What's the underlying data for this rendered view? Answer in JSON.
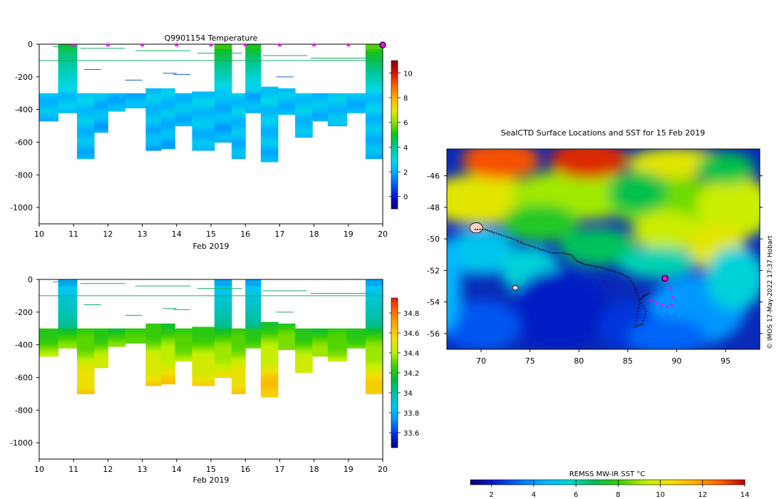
{
  "colors": {
    "temp_scale": [
      "#08007f",
      "#0010e0",
      "#0060ff",
      "#00b0ff",
      "#00d8e8",
      "#00c89a",
      "#10c020",
      "#90e000",
      "#e8e800",
      "#ffb000",
      "#ff6000",
      "#d81000",
      "#880000"
    ],
    "sal_scale": [
      "#08007f",
      "#0030e0",
      "#0090ff",
      "#00c8f0",
      "#00c0a0",
      "#00b840",
      "#40d000",
      "#c0f000",
      "#f0e000",
      "#ffb000",
      "#ff7000",
      "#e02000"
    ],
    "sst_scale": [
      "#08007f",
      "#0020d0",
      "#0070ff",
      "#00b8ff",
      "#00d8d0",
      "#00c050",
      "#40d000",
      "#c0f000",
      "#f8e000",
      "#ffb000",
      "#ff6000",
      "#c00000"
    ],
    "profile_marker": "#ff00ff",
    "track": "#000000"
  },
  "chart_data": [
    {
      "id": "temperature",
      "type": "heatmap",
      "title": "Q9901154  Temperature",
      "xlabel": "Feb 2019",
      "ylabel": "",
      "xlim": [
        10,
        20
      ],
      "ylim": [
        -1100,
        0
      ],
      "x_ticks": [
        10,
        11,
        12,
        13,
        14,
        15,
        16,
        17,
        18,
        19,
        20
      ],
      "y_ticks": [
        0,
        -200,
        -400,
        -600,
        -800,
        -1000
      ],
      "colorbar": {
        "range": [
          -1,
          11
        ],
        "ticks": [
          0,
          2,
          4,
          6,
          8,
          10
        ]
      },
      "surface_markers": [
        11,
        12,
        13,
        14,
        15,
        16,
        17,
        18,
        19
      ],
      "last_marker": 20,
      "profiles": [
        {
          "x0": 10.0,
          "x1": 10.55,
          "depth": 470,
          "surface": null,
          "thermo": 300,
          "deep": 2.4
        },
        {
          "x0": 10.55,
          "x1": 11.1,
          "depth": 420,
          "surface": 4.5,
          "thermo": 300,
          "deep": 2.5
        },
        {
          "x0": 11.1,
          "x1": 11.6,
          "depth": 700,
          "surface": null,
          "thermo": 300,
          "deep": 2.6
        },
        {
          "x0": 11.6,
          "x1": 12.0,
          "depth": 540,
          "surface": null,
          "thermo": 300,
          "deep": 2.3
        },
        {
          "x0": 12.0,
          "x1": 12.5,
          "depth": 410,
          "surface": null,
          "thermo": 300,
          "deep": 2.2
        },
        {
          "x0": 12.5,
          "x1": 13.1,
          "depth": 390,
          "surface": null,
          "thermo": 300,
          "deep": 2.2
        },
        {
          "x0": 13.1,
          "x1": 13.55,
          "depth": 650,
          "surface": null,
          "thermo": 270,
          "deep": 2.5
        },
        {
          "x0": 13.55,
          "x1": 13.95,
          "depth": 640,
          "surface": null,
          "thermo": 270,
          "deep": 2.5
        },
        {
          "x0": 13.95,
          "x1": 14.45,
          "depth": 500,
          "surface": null,
          "thermo": 300,
          "deep": 2.4
        },
        {
          "x0": 14.45,
          "x1": 15.1,
          "depth": 650,
          "surface": null,
          "thermo": 290,
          "deep": 2.6
        },
        {
          "x0": 15.1,
          "x1": 15.6,
          "depth": 600,
          "surface": 5.0,
          "thermo": 300,
          "deep": 2.3
        },
        {
          "x0": 15.6,
          "x1": 16.0,
          "depth": 700,
          "surface": null,
          "thermo": 300,
          "deep": 2.6
        },
        {
          "x0": 16.0,
          "x1": 16.45,
          "depth": 420,
          "surface": 4.8,
          "thermo": 300,
          "deep": 2.2
        },
        {
          "x0": 16.45,
          "x1": 16.95,
          "depth": 715,
          "surface": null,
          "thermo": 255,
          "deep": 2.7
        },
        {
          "x0": 16.95,
          "x1": 17.45,
          "depth": 430,
          "surface": null,
          "thermo": 265,
          "deep": 2.4
        },
        {
          "x0": 17.45,
          "x1": 17.95,
          "depth": 570,
          "surface": null,
          "thermo": 300,
          "deep": 2.6
        },
        {
          "x0": 17.95,
          "x1": 18.4,
          "depth": 470,
          "surface": null,
          "thermo": 300,
          "deep": 2.4
        },
        {
          "x0": 18.4,
          "x1": 18.95,
          "depth": 500,
          "surface": null,
          "thermo": 300,
          "deep": 2.5
        },
        {
          "x0": 18.95,
          "x1": 19.5,
          "depth": 420,
          "surface": null,
          "thermo": 300,
          "deep": 2.3
        },
        {
          "x0": 19.5,
          "x1": 20.0,
          "depth": 700,
          "surface": 5.2,
          "thermo": 300,
          "deep": 2.6
        }
      ]
    },
    {
      "id": "salinity",
      "type": "heatmap",
      "title": "",
      "xlabel": "Feb 2019",
      "xlim": [
        10,
        20
      ],
      "ylim": [
        -1100,
        0
      ],
      "x_ticks": [
        10,
        11,
        12,
        13,
        14,
        15,
        16,
        17,
        18,
        19,
        20
      ],
      "y_ticks": [
        0,
        -200,
        -400,
        -600,
        -800,
        -1000
      ],
      "colorbar": {
        "range": [
          33.45,
          34.95
        ],
        "ticks": [
          33.6,
          33.8,
          34,
          34.2,
          34.4,
          34.6,
          34.8
        ]
      }
    },
    {
      "id": "map",
      "type": "heatmap",
      "title": "SealCTD Surface Locations and SST for 15 Feb 2019",
      "xlim": [
        66.5,
        98.5
      ],
      "ylim": [
        -57,
        -44.3
      ],
      "x_ticks": [
        70,
        75,
        80,
        85,
        90,
        95
      ],
      "y_ticks": [
        -46,
        -48,
        -50,
        -52,
        -54,
        -56
      ],
      "colorbar": {
        "label": "REMSS MW-IR SST °C",
        "range": [
          1,
          14
        ],
        "ticks": [
          2,
          4,
          6,
          8,
          10,
          12,
          14
        ]
      },
      "track": [
        [
          69.4,
          -49.4
        ],
        [
          70.4,
          -49.4
        ],
        [
          71.3,
          -49.6
        ],
        [
          72.3,
          -49.8
        ],
        [
          73.3,
          -50.0
        ],
        [
          74.3,
          -50.3
        ],
        [
          75.3,
          -50.5
        ],
        [
          76.3,
          -50.7
        ],
        [
          77.3,
          -50.9
        ],
        [
          78.3,
          -50.9
        ],
        [
          79.2,
          -51.0
        ],
        [
          79.8,
          -51.4
        ],
        [
          80.5,
          -51.6
        ],
        [
          81.3,
          -51.7
        ],
        [
          82.2,
          -51.8
        ],
        [
          83.2,
          -52.0
        ],
        [
          84.3,
          -52.2
        ],
        [
          85.2,
          -52.5
        ],
        [
          85.8,
          -53.2
        ],
        [
          86.2,
          -54.0
        ],
        [
          86.0,
          -54.8
        ],
        [
          85.7,
          -55.6
        ],
        [
          86.5,
          -55.4
        ],
        [
          86.9,
          -54.6
        ],
        [
          86.2,
          -53.9
        ],
        [
          86.7,
          -53.6
        ],
        [
          87.3,
          -53.4
        ]
      ],
      "profile_track": [
        [
          87.4,
          -53.9
        ],
        [
          87.9,
          -54.1
        ],
        [
          88.5,
          -54.2
        ],
        [
          89.0,
          -54.3
        ],
        [
          89.5,
          -54.2
        ],
        [
          89.6,
          -53.7
        ],
        [
          89.4,
          -53.1
        ],
        [
          89.0,
          -52.7
        ]
      ],
      "current_position": [
        88.8,
        -52.5
      ],
      "islands": [
        [
          69.5,
          -49.3
        ],
        [
          73.5,
          -53.1
        ]
      ],
      "credit": "© IMOS 17-May-2022 17:37 Hobart"
    }
  ]
}
